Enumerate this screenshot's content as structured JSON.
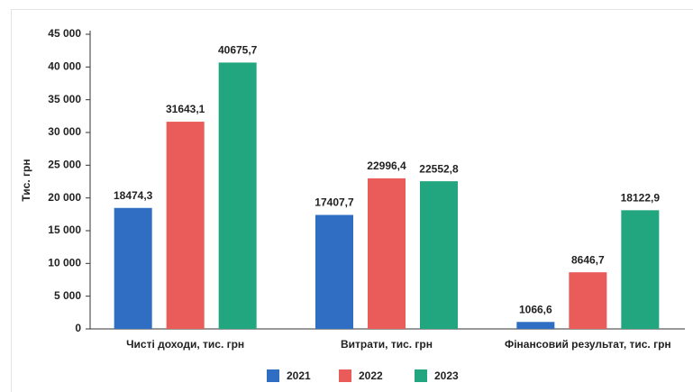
{
  "chart_data": {
    "type": "bar",
    "y_label": "Тис. грн",
    "categories": [
      "Чисті доходи, тис. грн",
      "Витрати, тис. грн",
      "Фінансовий результат, тис. грн"
    ],
    "series": [
      {
        "name": "2021",
        "color": "#2f6ec3",
        "values": [
          18474.3,
          17407.7,
          1066.6
        ],
        "value_labels": [
          "18474,3",
          "17407,7",
          "1066,6"
        ]
      },
      {
        "name": "2022",
        "color": "#e95c5a",
        "values": [
          31643.1,
          22996.4,
          8646.7
        ],
        "value_labels": [
          "31643,1",
          "22996,4",
          "8646,7"
        ]
      },
      {
        "name": "2023",
        "color": "#22a67f",
        "values": [
          40675.7,
          22552.8,
          18122.9
        ],
        "value_labels": [
          "40675,7",
          "22552,8",
          "18122,9"
        ]
      }
    ],
    "ylim": [
      0,
      45000
    ],
    "yticks": [
      0,
      {
        "value": 5000,
        "label": "5 000"
      },
      {
        "value": 10000,
        "label": "10 000"
      },
      {
        "value": 15000,
        "label": "15 000"
      },
      {
        "value": 20000,
        "label": "20 000"
      },
      {
        "value": 25000,
        "label": "25 000"
      },
      {
        "value": 30000,
        "label": "30 000"
      },
      {
        "value": 35000,
        "label": "35 000"
      },
      {
        "value": 40000,
        "label": "40 000"
      },
      {
        "value": 45000,
        "label": "45 000"
      }
    ]
  }
}
